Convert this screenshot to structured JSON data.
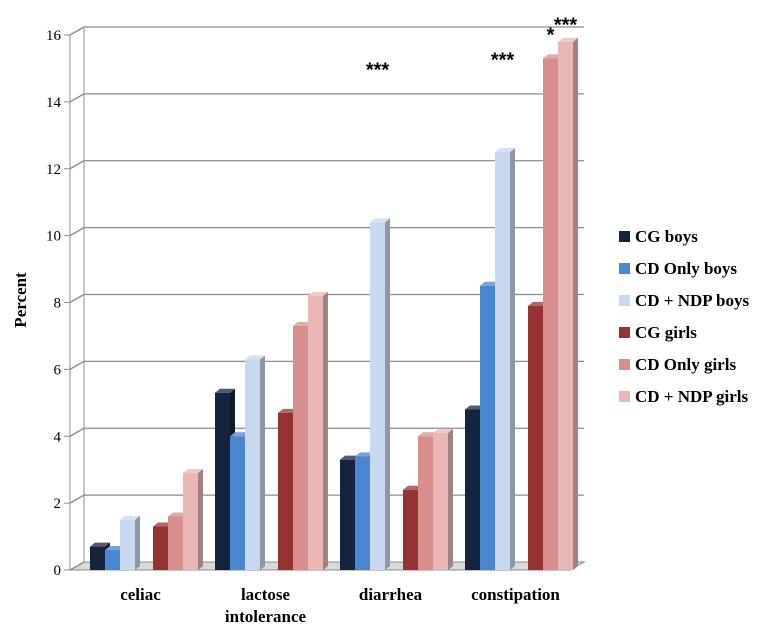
{
  "chart_data": {
    "type": "bar",
    "title": "",
    "xlabel": "",
    "ylabel": "Percent",
    "ylim": [
      0,
      16
    ],
    "yticks": [
      0,
      2,
      4,
      6,
      8,
      10,
      12,
      14,
      16
    ],
    "grid": true,
    "legend_position": "right",
    "categories": [
      [
        "celiac"
      ],
      [
        "lactose",
        "intolerance"
      ],
      [
        "diarrhea"
      ],
      [
        "constipation"
      ]
    ],
    "series": [
      {
        "name": "CG boys",
        "color": "#14243f",
        "values": [
          0.7,
          5.3,
          3.3,
          4.8
        ]
      },
      {
        "name": "CD Only boys",
        "color": "#4a86d2",
        "values": [
          0.6,
          4.0,
          3.4,
          8.5
        ]
      },
      {
        "name": "CD + NDP boys",
        "color": "#c8d8ef",
        "values": [
          1.5,
          6.3,
          10.4,
          12.5
        ]
      },
      {
        "name": "CG girls",
        "color": "#973232",
        "values": [
          1.3,
          4.7,
          2.4,
          7.9
        ]
      },
      {
        "name": "CD Only girls",
        "color": "#d88e8c",
        "values": [
          1.6,
          7.3,
          4.0,
          15.3
        ]
      },
      {
        "name": "CD + NDP girls",
        "color": "#e9b8b6",
        "values": [
          2.9,
          8.2,
          4.1,
          15.8
        ]
      }
    ],
    "annotations": [
      {
        "text": "***",
        "category": 2,
        "series": 2,
        "value": 15
      },
      {
        "text": "***",
        "category": 3,
        "series": 2,
        "value": 15.3
      },
      {
        "text": "*",
        "category": 3,
        "series": 4,
        "value": 16.05
      },
      {
        "text": "***",
        "category": 3,
        "series": 5,
        "value": 16.35
      }
    ]
  }
}
